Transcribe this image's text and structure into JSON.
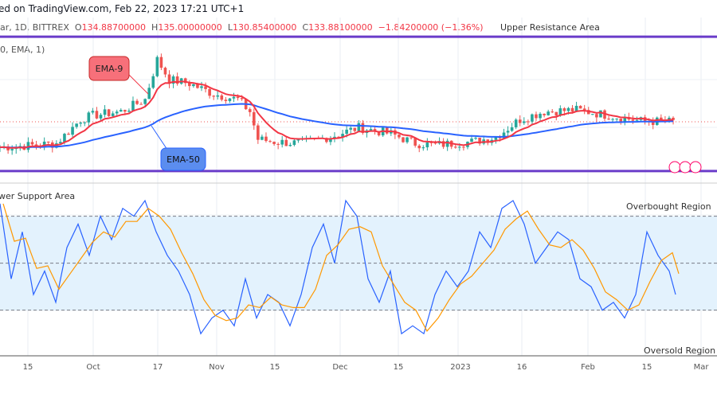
{
  "header": {
    "published": "ed on TradingView.com, Feb 22, 2023 17:21 UTC+1"
  },
  "legend": {
    "symbol": "ar, 1D, BITTREX",
    "o_label": "O",
    "o": "134.88700000",
    "h_label": "H",
    "h": "135.00000000",
    "l_label": "L",
    "l": "130.85400000",
    "c_label": "C",
    "c": "133.88100000",
    "change": "−1.84200000 (−1.36%)",
    "indicator": "0, EMA, 1)"
  },
  "colors": {
    "up": "#26a69a",
    "down": "#ef5350",
    "ema9": "#f23645",
    "ema50": "#2962ff",
    "zone_line": "#6a3cc9",
    "stoch_k": "#2962ff",
    "stoch_d": "#ff9800",
    "band": "#e3f2fd"
  },
  "chart_data": [
    {
      "type": "candlestick",
      "note_labels": {
        "resistance": "Upper Resistance Area",
        "support": "wer Support Area",
        "ema9": "EMA-9",
        "ema50": "EMA-50"
      },
      "close_keypoints": [
        [
          "2022-09-08",
          125.9
        ],
        [
          "2022-09-15",
          126.4
        ],
        [
          "2022-09-22",
          127.1
        ],
        [
          "2022-09-28",
          134.6
        ],
        [
          "2022-10-01",
          135.9
        ],
        [
          "2022-10-08",
          137.1
        ],
        [
          "2022-10-14",
          140.9
        ],
        [
          "2022-10-17",
          153.4
        ],
        [
          "2022-10-20",
          147.1
        ],
        [
          "2022-10-25",
          145.9
        ],
        [
          "2022-10-31",
          142.6
        ],
        [
          "2022-11-06",
          140.9
        ],
        [
          "2022-11-09",
          137.1
        ],
        [
          "2022-11-11",
          128.4
        ],
        [
          "2022-11-15",
          127.6
        ],
        [
          "2022-11-22",
          127.1
        ],
        [
          "2022-11-30",
          129.6
        ],
        [
          "2022-12-06",
          132.1
        ],
        [
          "2022-12-14",
          130.1
        ],
        [
          "2022-12-20",
          127.1
        ],
        [
          "2022-12-25",
          126.6
        ],
        [
          "2023-01-03",
          127.6
        ],
        [
          "2023-01-09",
          129.1
        ],
        [
          "2023-01-15",
          134.6
        ],
        [
          "2023-01-21",
          137.1
        ],
        [
          "2023-01-29",
          137.6
        ],
        [
          "2023-02-06",
          135.9
        ],
        [
          "2023-02-14",
          134.1
        ],
        [
          "2023-02-22",
          133.9
        ]
      ],
      "resistance": 160.6,
      "support": 118.4,
      "last_close": 133.881,
      "ylim": [
        116,
        162
      ]
    },
    {
      "type": "line",
      "name": "stochastic",
      "ylim": [
        0,
        100
      ],
      "levels": [
        80,
        50,
        20
      ],
      "overbought_label": "Overbought Region",
      "oversold_label": "Oversold Region",
      "k": [
        88,
        40,
        70,
        30,
        45,
        25,
        60,
        75,
        55,
        80,
        65,
        85,
        80,
        90,
        70,
        55,
        45,
        30,
        5,
        15,
        20,
        10,
        40,
        15,
        30,
        25,
        10,
        30,
        60,
        75,
        50,
        90,
        80,
        40,
        25,
        45,
        5,
        10,
        5,
        30,
        45,
        35,
        45,
        70,
        60,
        85,
        90,
        75,
        50,
        60,
        70,
        65,
        40,
        35,
        20,
        25,
        15,
        30,
        70,
        55,
        45,
        30
      ]
    }
  ],
  "time_axis": [
    "15",
    "Oct",
    "17",
    "Nov",
    "15",
    "Dec",
    "15",
    "2023",
    "16",
    "Feb",
    "15",
    "Mar"
  ]
}
